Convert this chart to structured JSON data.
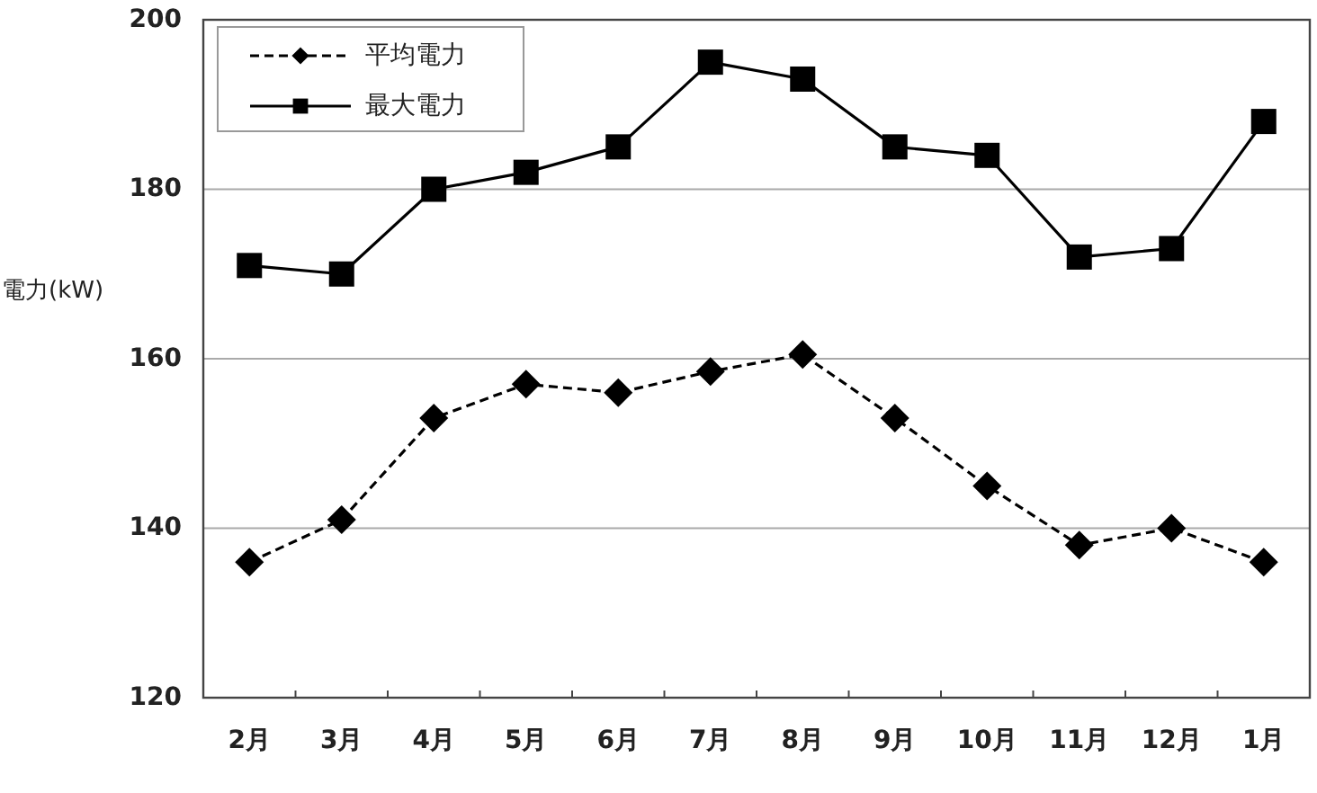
{
  "chart_data": {
    "type": "line",
    "ylabel": "電力(kW)",
    "categories": [
      "2月",
      "3月",
      "4月",
      "5月",
      "6月",
      "7月",
      "8月",
      "9月",
      "10月",
      "11月",
      "12月",
      "1月"
    ],
    "series": [
      {
        "name": "平均電力",
        "color": "#000000",
        "marker": "diamond",
        "line_style": "dashed",
        "values": [
          136,
          141,
          153,
          157,
          156,
          158.5,
          160.5,
          153,
          145,
          138,
          140,
          136
        ]
      },
      {
        "name": "最大電力",
        "color": "#000000",
        "marker": "square",
        "line_style": "solid",
        "values": [
          171,
          170,
          180,
          182,
          185,
          195,
          193,
          185,
          184,
          172,
          173,
          188
        ]
      }
    ],
    "ylim": [
      120,
      200
    ],
    "yticks": [
      120,
      140,
      160,
      180,
      200
    ],
    "grid": "y",
    "legend": "top left"
  }
}
